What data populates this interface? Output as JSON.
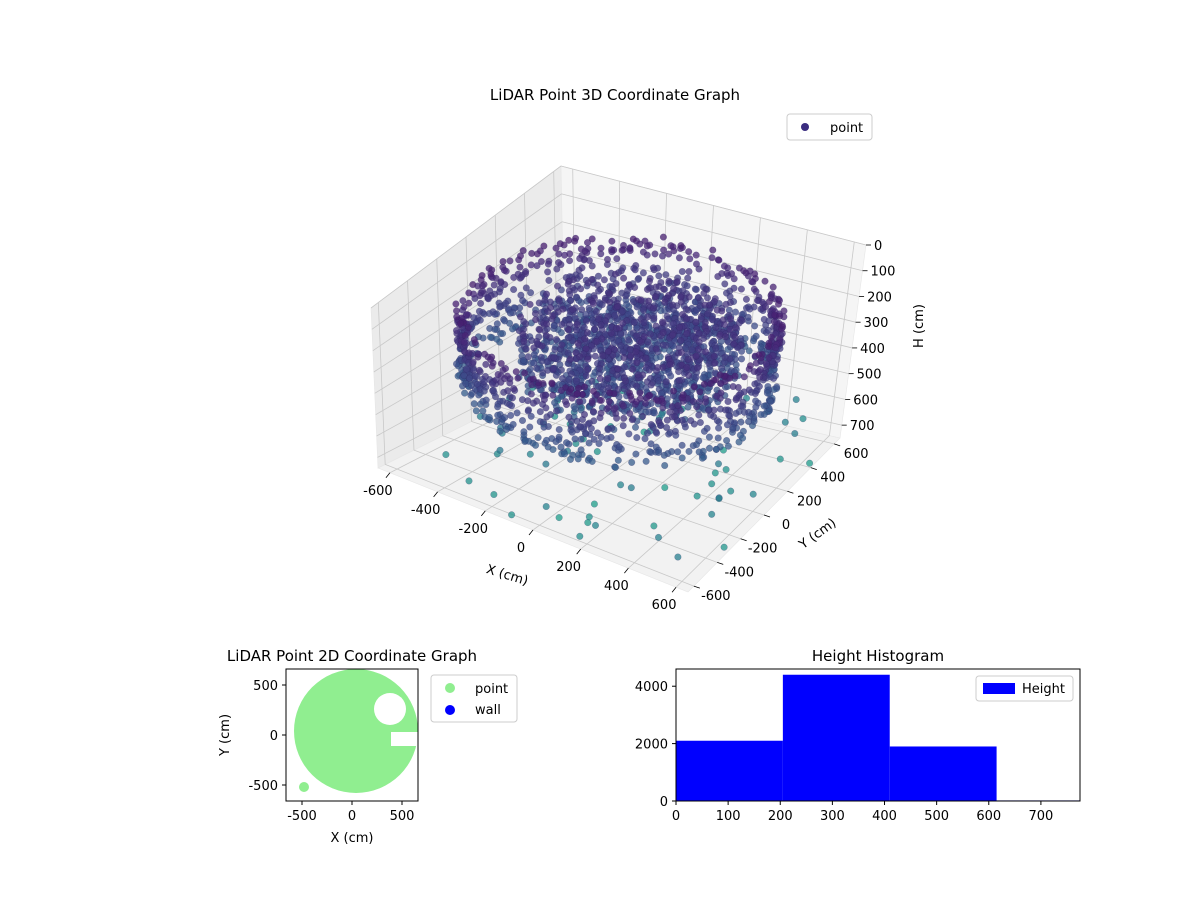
{
  "chart_data": [
    {
      "type": "scatter",
      "projection": "3d",
      "title": "LiDAR Point 3D Coordinate Graph",
      "xlabel": "X (cm)",
      "ylabel": "Y (cm)",
      "zlabel": "H (cm)",
      "xlim": [
        -650,
        650
      ],
      "ylim": [
        -650,
        650
      ],
      "zlim": [
        0,
        750
      ],
      "z_inverted": true,
      "xticks": [
        "-600",
        "-400",
        "-200",
        "0",
        "200",
        "400",
        "600"
      ],
      "yticks": [
        "-600",
        "-400",
        "-200",
        "0",
        "200",
        "400",
        "600"
      ],
      "zticks": [
        "0",
        "100",
        "200",
        "300",
        "400",
        "500",
        "600",
        "700"
      ],
      "grid": true,
      "legend": {
        "entries": [
          "point"
        ],
        "placement": "top-right"
      },
      "series": [
        {
          "name": "point",
          "color": "#3b2d80",
          "colormap": "viridis",
          "structure": "ring-shaped point cloud: outer wall ring radius ~580 cm spanning heights ~120-420 cm, dense inner cluster radius ~0-420 cm at heights ~200-420 cm, sparse scattered points near floor"
        }
      ]
    },
    {
      "type": "scatter",
      "title": "LiDAR Point 2D Coordinate Graph",
      "xlabel": "X (cm)",
      "ylabel": "Y (cm)",
      "xlim": [
        -660,
        660
      ],
      "ylim": [
        -660,
        660
      ],
      "xticks": [
        "-500",
        "0",
        "500"
      ],
      "yticks": [
        "-500",
        "0",
        "500"
      ],
      "legend": {
        "entries": [
          "point",
          "wall"
        ],
        "placement": "right-outside"
      },
      "series": [
        {
          "name": "point",
          "color": "#90ee90"
        },
        {
          "name": "wall",
          "color": "#0000ff",
          "values": []
        }
      ]
    },
    {
      "type": "bar",
      "subtype": "histogram",
      "title": "Height Histogram",
      "xlim": [
        0,
        775
      ],
      "ylim": [
        0,
        4600
      ],
      "xticks": [
        "0",
        "100",
        "200",
        "300",
        "400",
        "500",
        "600",
        "700"
      ],
      "yticks": [
        "0",
        "2000",
        "4000"
      ],
      "legend": {
        "entries": [
          "Height"
        ],
        "placement": "top-right"
      },
      "bins": [
        {
          "x0": 0,
          "x1": 205,
          "count": 2100
        },
        {
          "x0": 205,
          "x1": 410,
          "count": 4400
        },
        {
          "x0": 410,
          "x1": 615,
          "count": 1900
        },
        {
          "x0": 615,
          "x1": 775,
          "count": 20
        }
      ],
      "series": [
        {
          "name": "Height",
          "color": "#0000ff"
        }
      ]
    }
  ]
}
